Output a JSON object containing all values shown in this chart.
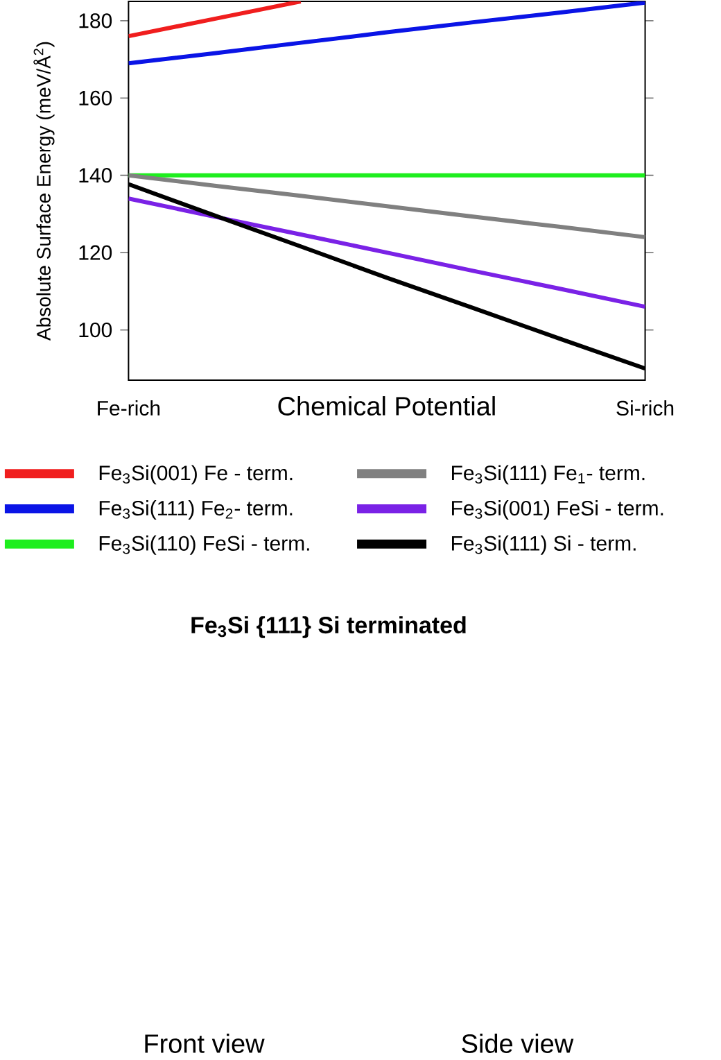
{
  "chart_data": {
    "type": "line",
    "xlabel": "Chemical Potential",
    "ylabel": "Absolute Surface Energy (meV/Å$^{2}$)",
    "categories": [
      "Fe-rich",
      null,
      null,
      null,
      null,
      null,
      "Si-rich"
    ],
    "ylim": [
      87,
      185
    ],
    "yticks": [
      100,
      120,
      140,
      160,
      180
    ],
    "legend": "bottom",
    "series": [
      {
        "name": "Fe$_{3}$Si(001) Fe - term.",
        "color": "#f01e1e",
        "values": [
          176,
          180.5,
          185,
          null,
          null,
          null,
          null
        ]
      },
      {
        "name": "Fe$_{3}$Si(111) Fe$_{2}$- term.",
        "color": "#0a14e6",
        "values": [
          169,
          171.6,
          174.3,
          177,
          179.6,
          182.1,
          184.7
        ]
      },
      {
        "name": "Fe$_{3}$Si(110) FeSi - term.",
        "color": "#1eee1e",
        "values": [
          140,
          140,
          140,
          140,
          140,
          140,
          140
        ]
      },
      {
        "name": "Fe$_{3}$Si(111) Fe$_{1}$- term.",
        "color": "#808080",
        "values": [
          140,
          137.3,
          134.7,
          132,
          129.3,
          126.7,
          124
        ]
      },
      {
        "name": "Fe$_{3}$Si(001) FeSi - term.",
        "color": "#7a22e6",
        "values": [
          134,
          129.3,
          124.7,
          120,
          115.3,
          110.7,
          106
        ]
      },
      {
        "name": "Fe$_{3}$Si(111) Si - term.",
        "color": "#000000",
        "values": [
          137.7,
          129.6,
          121.6,
          113.5,
          105.7,
          97.8,
          90
        ]
      }
    ],
    "annotations": [
      "Fe$_{3}$Si {111} Si terminated",
      "Front view",
      "Side view"
    ]
  }
}
